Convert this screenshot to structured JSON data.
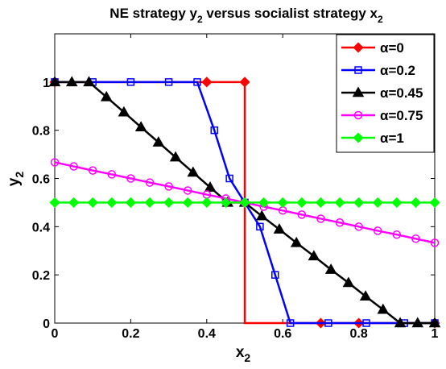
{
  "chart_data": {
    "type": "line",
    "title": {
      "prefix": "NE strategy y",
      "sub1": "2",
      "middle": " versus socialist strategy x",
      "sub2": "2"
    },
    "xlabel": {
      "main": "x",
      "sub": "2"
    },
    "ylabel": {
      "main": "y",
      "sub": "2"
    },
    "xlim": [
      0,
      1
    ],
    "ylim": [
      0,
      1.2
    ],
    "xticks": [
      0,
      0.2,
      0.4,
      0.6,
      0.8,
      1
    ],
    "xtick_labels": [
      "0",
      "0.2",
      "0.4",
      "0.6",
      "0.8",
      "1"
    ],
    "yticks": [
      0,
      0.2,
      0.4,
      0.6,
      0.8,
      1
    ],
    "ytick_labels": [
      "0",
      "0.2",
      "0.4",
      "0.6",
      "0.8",
      "1"
    ],
    "grid": false,
    "legend_position": "top-right",
    "series": [
      {
        "name": "α=0",
        "color": "#ff0000",
        "marker": "diamond",
        "filled": true,
        "x": [
          0,
          0.4,
          0.5,
          0.5,
          0.7,
          0.8,
          1
        ],
        "y": [
          1,
          1,
          1,
          0,
          0,
          0,
          0
        ],
        "markers_x": [
          0,
          0.4,
          0.5,
          0.7,
          0.8,
          1
        ],
        "markers_y": [
          1,
          1,
          1,
          0,
          0,
          0
        ]
      },
      {
        "name": "α=0.2",
        "color": "#0000ff",
        "marker": "square",
        "filled": false,
        "x": [
          0,
          0.1,
          0.2,
          0.3,
          0.375,
          0.42,
          0.46,
          0.5,
          0.54,
          0.58,
          0.62,
          0.72,
          0.82,
          0.92,
          1
        ],
        "y": [
          1,
          1,
          1,
          1,
          1,
          0.8,
          0.6,
          0.5,
          0.4,
          0.2,
          0,
          0,
          0,
          0,
          0
        ]
      },
      {
        "name": "α=0.45",
        "color": "#000000",
        "marker": "triangle",
        "filled": true,
        "x": [
          0,
          0.045,
          0.09,
          0.136,
          0.182,
          0.227,
          0.273,
          0.318,
          0.364,
          0.409,
          0.455,
          0.5,
          0.545,
          0.591,
          0.636,
          0.682,
          0.727,
          0.773,
          0.818,
          0.864,
          0.909,
          0.955,
          1
        ],
        "y": [
          1,
          1,
          1,
          0.938,
          0.875,
          0.813,
          0.75,
          0.688,
          0.625,
          0.563,
          0.5,
          0.5,
          0.444,
          0.389,
          0.333,
          0.278,
          0.222,
          0.167,
          0.111,
          0.056,
          0,
          0,
          0
        ]
      },
      {
        "name": "α=0.75",
        "color": "#ff00ff",
        "marker": "circle",
        "filled": false,
        "x": [
          0,
          0.05,
          0.1,
          0.15,
          0.2,
          0.25,
          0.3,
          0.35,
          0.4,
          0.45,
          0.5,
          0.55,
          0.6,
          0.65,
          0.7,
          0.75,
          0.8,
          0.85,
          0.9,
          0.95,
          1
        ],
        "y": [
          0.667,
          0.65,
          0.633,
          0.617,
          0.6,
          0.583,
          0.567,
          0.55,
          0.533,
          0.517,
          0.5,
          0.483,
          0.467,
          0.45,
          0.433,
          0.417,
          0.4,
          0.383,
          0.367,
          0.35,
          0.333
        ]
      },
      {
        "name": "α=1",
        "color": "#00ff00",
        "marker": "diamond",
        "filled": true,
        "x": [
          0,
          0.05,
          0.1,
          0.15,
          0.2,
          0.25,
          0.3,
          0.35,
          0.4,
          0.45,
          0.5,
          0.55,
          0.6,
          0.65,
          0.7,
          0.75,
          0.8,
          0.85,
          0.9,
          0.95,
          1
        ],
        "y": [
          0.5,
          0.5,
          0.5,
          0.5,
          0.5,
          0.5,
          0.5,
          0.5,
          0.5,
          0.5,
          0.5,
          0.5,
          0.5,
          0.5,
          0.5,
          0.5,
          0.5,
          0.5,
          0.5,
          0.5,
          0.5
        ]
      }
    ]
  }
}
